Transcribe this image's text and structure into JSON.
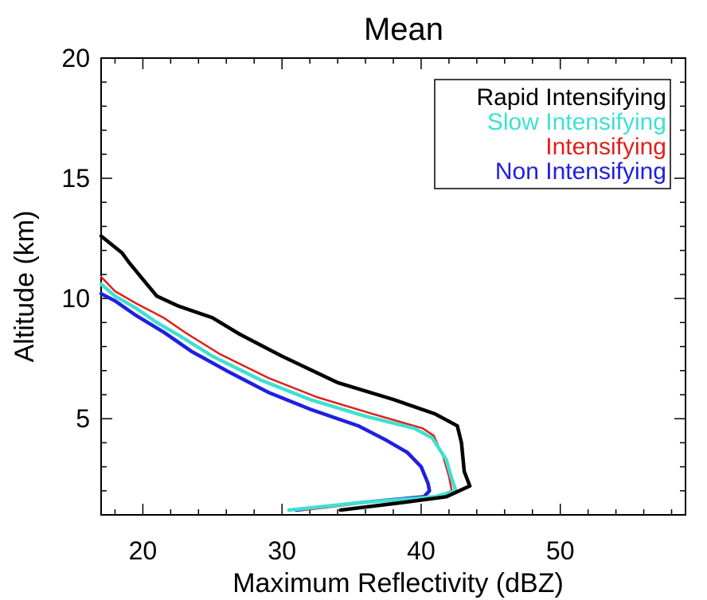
{
  "chart_data": {
    "type": "line",
    "title": "Mean",
    "xlabel": "Maximum Reflectivity (dBZ)",
    "ylabel": "Altitude (km)",
    "xlim": [
      17,
      59
    ],
    "ylim": [
      1,
      20
    ],
    "xticks": [
      20,
      30,
      40,
      50
    ],
    "yticks": [
      5,
      10,
      15,
      20
    ],
    "legend_position": "top-right",
    "grid": false,
    "series": [
      {
        "name": "Rapid Intensifying",
        "color": "#000000",
        "points": [
          [
            34.2,
            1.2
          ],
          [
            38.5,
            1.5
          ],
          [
            41.8,
            1.75
          ],
          [
            43.5,
            2.2
          ],
          [
            43.1,
            2.8
          ],
          [
            42.9,
            4.0
          ],
          [
            42.6,
            4.7
          ],
          [
            41.0,
            5.2
          ],
          [
            38.0,
            5.8
          ],
          [
            34.0,
            6.5
          ],
          [
            30.0,
            7.6
          ],
          [
            27.0,
            8.5
          ],
          [
            25.0,
            9.2
          ],
          [
            22.5,
            9.7
          ],
          [
            21.0,
            10.1
          ],
          [
            20.0,
            10.8
          ],
          [
            19.0,
            11.5
          ],
          [
            18.5,
            11.9
          ],
          [
            17.0,
            12.6
          ]
        ]
      },
      {
        "name": "Slow Intensifying",
        "color": "#40E0D0",
        "points": [
          [
            30.5,
            1.2
          ],
          [
            35.5,
            1.5
          ],
          [
            41.0,
            1.75
          ],
          [
            42.5,
            2.0
          ],
          [
            42.2,
            2.5
          ],
          [
            41.8,
            3.3
          ],
          [
            40.8,
            4.2
          ],
          [
            39.5,
            4.6
          ],
          [
            36.0,
            5.1
          ],
          [
            32.0,
            5.8
          ],
          [
            28.5,
            6.6
          ],
          [
            25.0,
            7.6
          ],
          [
            22.5,
            8.5
          ],
          [
            21.0,
            9.0
          ],
          [
            19.5,
            9.6
          ],
          [
            18.0,
            10.1
          ],
          [
            17.0,
            10.6
          ]
        ]
      },
      {
        "name": "Intensifying",
        "color": "#E0201A",
        "points": [
          [
            31.5,
            1.2
          ],
          [
            36.0,
            1.5
          ],
          [
            41.0,
            1.75
          ],
          [
            42.2,
            2.0
          ],
          [
            42.0,
            2.6
          ],
          [
            41.6,
            3.4
          ],
          [
            40.9,
            4.3
          ],
          [
            40.1,
            4.6
          ],
          [
            36.5,
            5.2
          ],
          [
            32.5,
            5.9
          ],
          [
            29.0,
            6.7
          ],
          [
            25.5,
            7.7
          ],
          [
            23.0,
            8.6
          ],
          [
            21.5,
            9.2
          ],
          [
            19.5,
            9.8
          ],
          [
            18.0,
            10.3
          ],
          [
            17.0,
            10.9
          ]
        ]
      },
      {
        "name": "Non Intensifying",
        "color": "#2020E0",
        "points": [
          [
            31.0,
            1.2
          ],
          [
            35.5,
            1.5
          ],
          [
            40.2,
            1.75
          ],
          [
            40.6,
            2.0
          ],
          [
            40.5,
            2.3
          ],
          [
            40.0,
            3.0
          ],
          [
            39.0,
            3.6
          ],
          [
            37.5,
            4.1
          ],
          [
            35.5,
            4.7
          ],
          [
            32.0,
            5.4
          ],
          [
            29.0,
            6.1
          ],
          [
            26.0,
            7.0
          ],
          [
            23.5,
            7.8
          ],
          [
            21.5,
            8.6
          ],
          [
            19.5,
            9.3
          ],
          [
            18.0,
            9.9
          ],
          [
            17.0,
            10.2
          ]
        ]
      }
    ]
  }
}
